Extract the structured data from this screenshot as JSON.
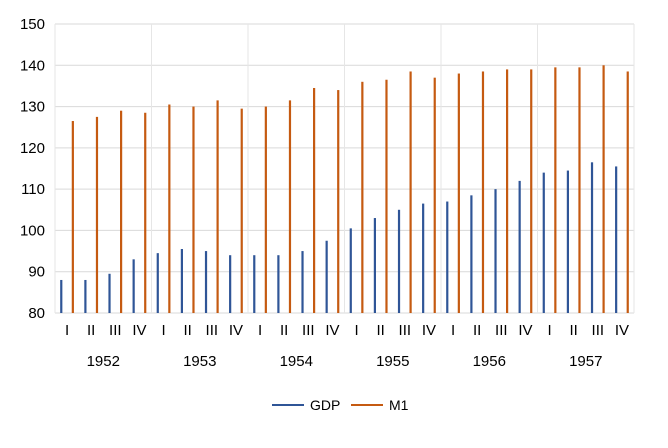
{
  "chart_data": {
    "type": "bar",
    "quarters": [
      "I",
      "II",
      "III",
      "IV"
    ],
    "years": [
      "1952",
      "1953",
      "1954",
      "1955",
      "1956",
      "1957"
    ],
    "categories": [
      "1952 I",
      "1952 II",
      "1952 III",
      "1952 IV",
      "1953 I",
      "1953 II",
      "1953 III",
      "1953 IV",
      "1954 I",
      "1954 II",
      "1954 III",
      "1954 IV",
      "1955 I",
      "1955 II",
      "1955 III",
      "1955 IV",
      "1956 I",
      "1956 II",
      "1956 III",
      "1956 IV",
      "1957 I",
      "1957 II",
      "1957 III",
      "1957 IV"
    ],
    "series": [
      {
        "name": "GDP",
        "color": "#2f5597",
        "values": [
          88,
          88,
          89.5,
          93,
          94.5,
          95.5,
          95,
          94,
          94,
          94,
          95,
          97.5,
          100.5,
          103,
          105,
          106.5,
          107,
          108.5,
          110,
          112,
          114,
          114.5,
          116.5,
          115.5
        ]
      },
      {
        "name": "M1",
        "color": "#c55a11",
        "values": [
          126.5,
          127.5,
          129,
          128.5,
          130.5,
          130,
          131.5,
          129.5,
          130,
          131.5,
          134.5,
          134,
          136,
          136.5,
          138.5,
          137,
          138,
          138.5,
          139,
          139,
          139.5,
          139.5,
          140,
          138.5
        ]
      }
    ],
    "y_ticks": [
      "80",
      "90",
      "100",
      "110",
      "120",
      "130",
      "140",
      "150"
    ],
    "ylim": [
      80,
      150
    ],
    "grid": true,
    "legend_position": "bottom"
  }
}
